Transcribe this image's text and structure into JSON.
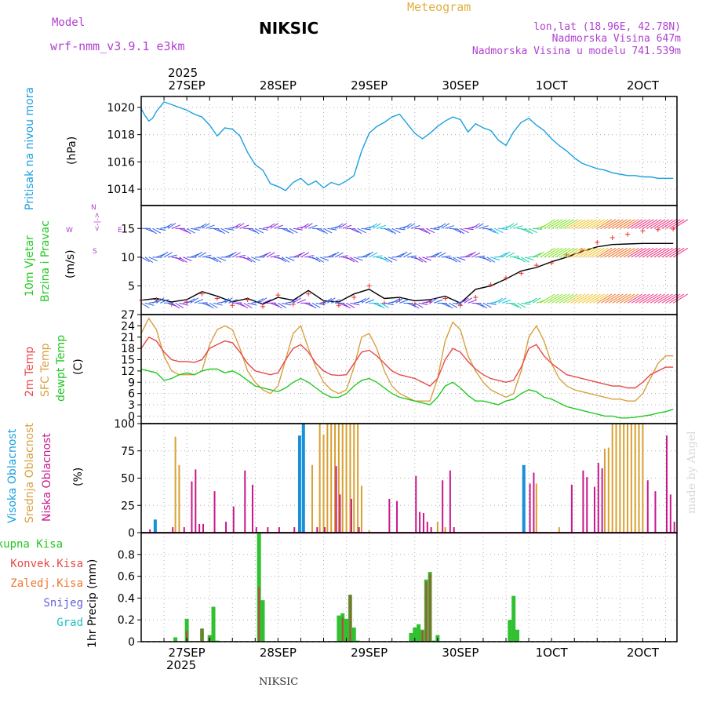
{
  "header": {
    "model_label": "Model",
    "model_name": "wrf-nmm_v3.9.1 e3km",
    "station": "NIKSIC",
    "meteogram": "Meteogram",
    "lonlat": "lon,lat (18.96E, 42.78N)",
    "elevation": "Nadmorska Visina 647m",
    "model_elevation": "Nadmorska Visina u modelu 741.539m",
    "year_top": "2025",
    "year_bottom": "2025",
    "footer_station": "NIKSIC",
    "watermark": "made by Angel"
  },
  "colors": {
    "pressure": "#1aa0e0",
    "temp2m": "#e84848",
    "sfc": "#d8a040",
    "dew": "#22c822",
    "high": "#1a90d8",
    "mid": "#d8a030",
    "low": "#c8188c",
    "precip_total": "#30c030",
    "precip_conv": "#c84040"
  },
  "panel_labels": {
    "pressure": [
      "Pritisak na nivou mora",
      "(hPa)"
    ],
    "wind": [
      "10m Vjetar",
      "Brzina i Pravac",
      "(m/s)"
    ],
    "wind_compass": {
      "n": "N",
      "s": "S",
      "w": "W",
      "e": "E",
      "arrow": "<-|->"
    },
    "temp": [
      "2m Temp",
      "SFC Temp",
      "dewpt Temp",
      "(C)"
    ],
    "cloud": [
      "Visoka Oblacnost",
      "Srednja Oblacnost",
      "Niska Oblacnost",
      "(%)"
    ],
    "precip_legend": [
      "Ukupna Kisa",
      "Konvek.Kisa",
      "Zaledj.Kisa",
      "Snijeg",
      "Grad"
    ],
    "precip_unit": "1hr Precip (mm)"
  },
  "chart_data": [
    {
      "type": "line",
      "title": "Pritisak na nivou mora",
      "ylabel": "(hPa)",
      "ylim": [
        1012.8,
        1020.8
      ],
      "yticks": [
        "1014",
        "1016",
        "1018",
        "1020"
      ],
      "x": [
        0,
        1,
        2,
        3,
        4,
        6,
        8,
        10,
        12,
        14,
        16,
        18,
        20,
        22,
        24,
        26,
        28,
        30,
        32,
        34,
        36,
        38,
        40,
        42,
        44,
        46,
        48,
        50,
        52,
        54,
        56,
        58,
        60,
        62,
        64,
        66,
        68,
        70,
        72,
        74,
        76,
        78,
        80,
        82,
        84,
        86,
        88,
        90,
        92,
        94,
        96,
        98,
        100,
        102,
        104,
        106,
        108,
        110,
        112,
        114,
        116,
        118,
        120,
        122,
        124,
        126,
        128,
        130,
        132,
        134,
        136,
        138,
        140
      ],
      "series": [
        {
          "name": "pressure",
          "values": [
            1019.9,
            1019.4,
            1019.0,
            1019.2,
            1019.7,
            1020.4,
            1020.2,
            1020.0,
            1019.8,
            1019.5,
            1019.3,
            1018.7,
            1017.9,
            1018.5,
            1018.4,
            1017.9,
            1016.7,
            1015.8,
            1015.4,
            1014.4,
            1014.2,
            1013.9,
            1014.5,
            1014.8,
            1014.3,
            1014.6,
            1014.1,
            1014.5,
            1014.3,
            1014.6,
            1015.0,
            1016.8,
            1018.1,
            1018.6,
            1018.9,
            1019.3,
            1019.5,
            1018.8,
            1018.1,
            1017.7,
            1018.1,
            1018.6,
            1019.0,
            1019.3,
            1019.1,
            1018.2,
            1018.8,
            1018.5,
            1018.3,
            1017.6,
            1017.2,
            1018.2,
            1018.9,
            1019.2,
            1018.7,
            1018.3,
            1017.7,
            1017.2,
            1016.8,
            1016.3,
            1015.9,
            1015.7,
            1015.5,
            1015.4,
            1015.2,
            1015.1,
            1015.0,
            1015.0,
            1014.9,
            1014.9,
            1014.8,
            1014.8,
            1014.8
          ]
        }
      ]
    },
    {
      "type": "line",
      "title": "10m Vjetar Brzina i Pravac",
      "ylabel": "(m/s)",
      "ylim": [
        0,
        19
      ],
      "yticks": [
        "5",
        "10",
        "15"
      ],
      "x": [
        0,
        4,
        8,
        12,
        16,
        20,
        24,
        28,
        32,
        36,
        40,
        44,
        48,
        52,
        56,
        60,
        64,
        68,
        72,
        76,
        80,
        84,
        88,
        92,
        96,
        100,
        104,
        108,
        112,
        116,
        120,
        124,
        128,
        132,
        136,
        140
      ],
      "series": [
        {
          "name": "10m speed",
          "values": [
            2.5,
            2.8,
            2.2,
            2.6,
            4.0,
            3.2,
            2.2,
            2.8,
            1.8,
            3.0,
            2.5,
            4.2,
            2.4,
            2.2,
            3.6,
            4.4,
            2.8,
            3.0,
            2.4,
            2.6,
            3.2,
            2.0,
            4.4,
            5.0,
            6.2,
            7.6,
            8.2,
            9.2,
            10.0,
            11.0,
            11.8,
            12.2,
            12.3,
            12.4,
            12.4,
            12.4
          ]
        },
        {
          "name": "upper speed",
          "values": [
            2.5,
            2.6,
            1.8,
            2.2,
            3.6,
            2.8,
            1.6,
            2.6,
            1.4,
            3.4,
            1.8,
            3.6,
            2.0,
            1.6,
            3.0,
            5.0,
            2.0,
            2.6,
            1.8,
            2.2,
            2.8,
            1.6,
            3.0,
            5.2,
            6.4,
            7.2,
            8.6,
            9.0,
            10.4,
            11.2,
            12.6,
            13.4,
            14.0,
            14.6,
            14.8,
            14.9
          ]
        }
      ],
      "barb_levels": [
        "15",
        "10",
        "2"
      ]
    },
    {
      "type": "line",
      "title": "Temperature",
      "ylabel": "(C)",
      "ylim": [
        -2,
        27
      ],
      "yticks": [
        "0",
        "3",
        "6",
        "9",
        "12",
        "15",
        "18",
        "21",
        "24",
        "27"
      ],
      "x": [
        0,
        2,
        4,
        6,
        8,
        10,
        12,
        14,
        16,
        18,
        20,
        22,
        24,
        26,
        28,
        30,
        32,
        34,
        36,
        38,
        40,
        42,
        44,
        46,
        48,
        50,
        52,
        54,
        56,
        58,
        60,
        62,
        64,
        66,
        68,
        70,
        72,
        74,
        76,
        78,
        80,
        82,
        84,
        86,
        88,
        90,
        92,
        94,
        96,
        98,
        100,
        102,
        104,
        106,
        108,
        110,
        112,
        114,
        116,
        118,
        120,
        122,
        124,
        126,
        128,
        130,
        132,
        134,
        136,
        138,
        140
      ],
      "series": [
        {
          "name": "2m Temp",
          "values": [
            18,
            21,
            20,
            17,
            15,
            14.5,
            14.5,
            14.3,
            15,
            18,
            19,
            20,
            19.5,
            17,
            14,
            12,
            11.5,
            11,
            11.5,
            15,
            18,
            19,
            17,
            14,
            12,
            11,
            10.8,
            11,
            14,
            17,
            17.5,
            16,
            14,
            12,
            11,
            10.5,
            10,
            9,
            8,
            10,
            15,
            18,
            17,
            14.5,
            12.5,
            11,
            10,
            9.5,
            9,
            9.5,
            13,
            18,
            19,
            16,
            14,
            12.5,
            11,
            10.5,
            10,
            9.5,
            9,
            8.5,
            8,
            8,
            7.5,
            7.5,
            9,
            11,
            12,
            13,
            13
          ]
        },
        {
          "name": "SFC Temp",
          "values": [
            22,
            26,
            23,
            16,
            12,
            11,
            11,
            11,
            12,
            19,
            23,
            24,
            23,
            18,
            12,
            9,
            7,
            6,
            8,
            15,
            22,
            24,
            18,
            13,
            9,
            7,
            6,
            7,
            13,
            21,
            22,
            18,
            12,
            8,
            6,
            5,
            4,
            4,
            4,
            10,
            20,
            25,
            23,
            16,
            12,
            9,
            7,
            6,
            5,
            6,
            12,
            21,
            24,
            20,
            14,
            10,
            8,
            7,
            6.5,
            6,
            5.5,
            5,
            4.5,
            4.5,
            4,
            4,
            6,
            10,
            14,
            16,
            16
          ]
        },
        {
          "name": "dewpt Temp",
          "values": [
            12.5,
            12,
            11.5,
            9.5,
            10,
            11,
            11.5,
            11,
            12,
            12.5,
            12.5,
            11.5,
            12,
            11,
            9.5,
            8,
            7.5,
            7,
            6.5,
            7.5,
            9,
            10,
            9,
            7.5,
            6,
            5,
            5,
            6,
            8,
            9.5,
            10,
            9,
            7.5,
            6,
            5,
            4.5,
            4,
            3.5,
            3,
            5,
            8,
            9,
            7.5,
            5.5,
            4,
            4,
            3.5,
            3,
            4,
            4.5,
            6,
            7,
            6.5,
            5,
            4.5,
            3.5,
            2.5,
            2,
            1.5,
            1,
            0.5,
            0,
            0,
            -0.5,
            -0.5,
            -0.3,
            0,
            0.3,
            0.8,
            1.2,
            1.8
          ]
        }
      ]
    },
    {
      "type": "bar",
      "title": "Oblacnost",
      "ylabel": "(%)",
      "ylim": [
        0,
        100
      ],
      "yticks": [
        "0",
        "25",
        "50",
        "75",
        "100"
      ],
      "series": [
        {
          "name": "Visoka Oblacnost",
          "x": [
            4,
            42,
            43,
            101
          ],
          "values": [
            12,
            89,
            100,
            62
          ]
        },
        {
          "name": "Srednja Oblacnost",
          "x": [
            9,
            10,
            45,
            47,
            48,
            49,
            50,
            51,
            52,
            53,
            54,
            55,
            56,
            57,
            58,
            60,
            78,
            80,
            104,
            110,
            122,
            123,
            124,
            125,
            126,
            127,
            128,
            129,
            130,
            131,
            132
          ],
          "values": [
            88,
            62,
            62,
            100,
            90,
            100,
            100,
            100,
            100,
            100,
            100,
            100,
            100,
            100,
            43,
            2,
            10,
            5,
            45,
            5,
            77,
            78,
            100,
            100,
            100,
            100,
            100,
            100,
            100,
            100,
            100
          ]
        },
        {
          "name": "Niska Oblacnost",
          "x": [
            2,
            8,
            11,
            13,
            14,
            15,
            16,
            19,
            22,
            24,
            27,
            29,
            30,
            33,
            36,
            40,
            46,
            48,
            51,
            52,
            55,
            57,
            65,
            67,
            72,
            73,
            74,
            75,
            76,
            79,
            81,
            82,
            102,
            103,
            113,
            116,
            117,
            119,
            120,
            121,
            133,
            135,
            138,
            139,
            140
          ],
          "values": [
            3,
            5,
            5,
            47,
            58,
            8,
            8,
            38,
            10,
            24,
            57,
            44,
            5,
            5,
            5,
            5,
            5,
            5,
            61,
            35,
            31,
            5,
            31,
            29,
            52,
            19,
            18,
            10,
            5,
            48,
            57,
            5,
            45,
            55,
            44,
            57,
            51,
            42,
            64,
            59,
            48,
            38,
            89,
            35,
            10
          ]
        }
      ]
    },
    {
      "type": "bar",
      "title": "1hr Precip",
      "ylabel": "1hr Precip (mm)",
      "ylim": [
        0,
        1
      ],
      "yticks": [
        "0",
        "0.2",
        "0.4",
        "0.6",
        "0.8"
      ],
      "series": [
        {
          "name": "Ukupna Kisa",
          "x": [
            9,
            12,
            16,
            18,
            19,
            20,
            31,
            32,
            52,
            53,
            54,
            55,
            56,
            57,
            71,
            72,
            73,
            74,
            75,
            76,
            77,
            78,
            97,
            98,
            99
          ],
          "values": [
            0.04,
            0.21,
            0.12,
            0.06,
            0.32,
            0.01,
            1.0,
            0.38,
            0.24,
            0.26,
            0.21,
            0.43,
            0.13,
            0.01,
            0.08,
            0.13,
            0.16,
            0.11,
            0.57,
            0.64,
            0.01,
            0.06,
            0.2,
            0.42,
            0.11
          ]
        },
        {
          "name": "Konvek.Kisa",
          "x": [
            12,
            16,
            18,
            31,
            53,
            55,
            74,
            75,
            76
          ],
          "values": [
            0.1,
            0.12,
            0.04,
            0.5,
            0.22,
            0.43,
            0.1,
            0.55,
            0.62
          ]
        }
      ]
    }
  ],
  "x_axis": {
    "start_hour": 0,
    "end_hour": 141,
    "day_labels": [
      {
        "label": "27SEP",
        "hour": 12
      },
      {
        "label": "28SEP",
        "hour": 36
      },
      {
        "label": "29SEP",
        "hour": 60
      },
      {
        "label": "30SEP",
        "hour": 84
      },
      {
        "label": "1OCT",
        "hour": 108
      },
      {
        "label": "2OCT",
        "hour": 132
      }
    ]
  }
}
